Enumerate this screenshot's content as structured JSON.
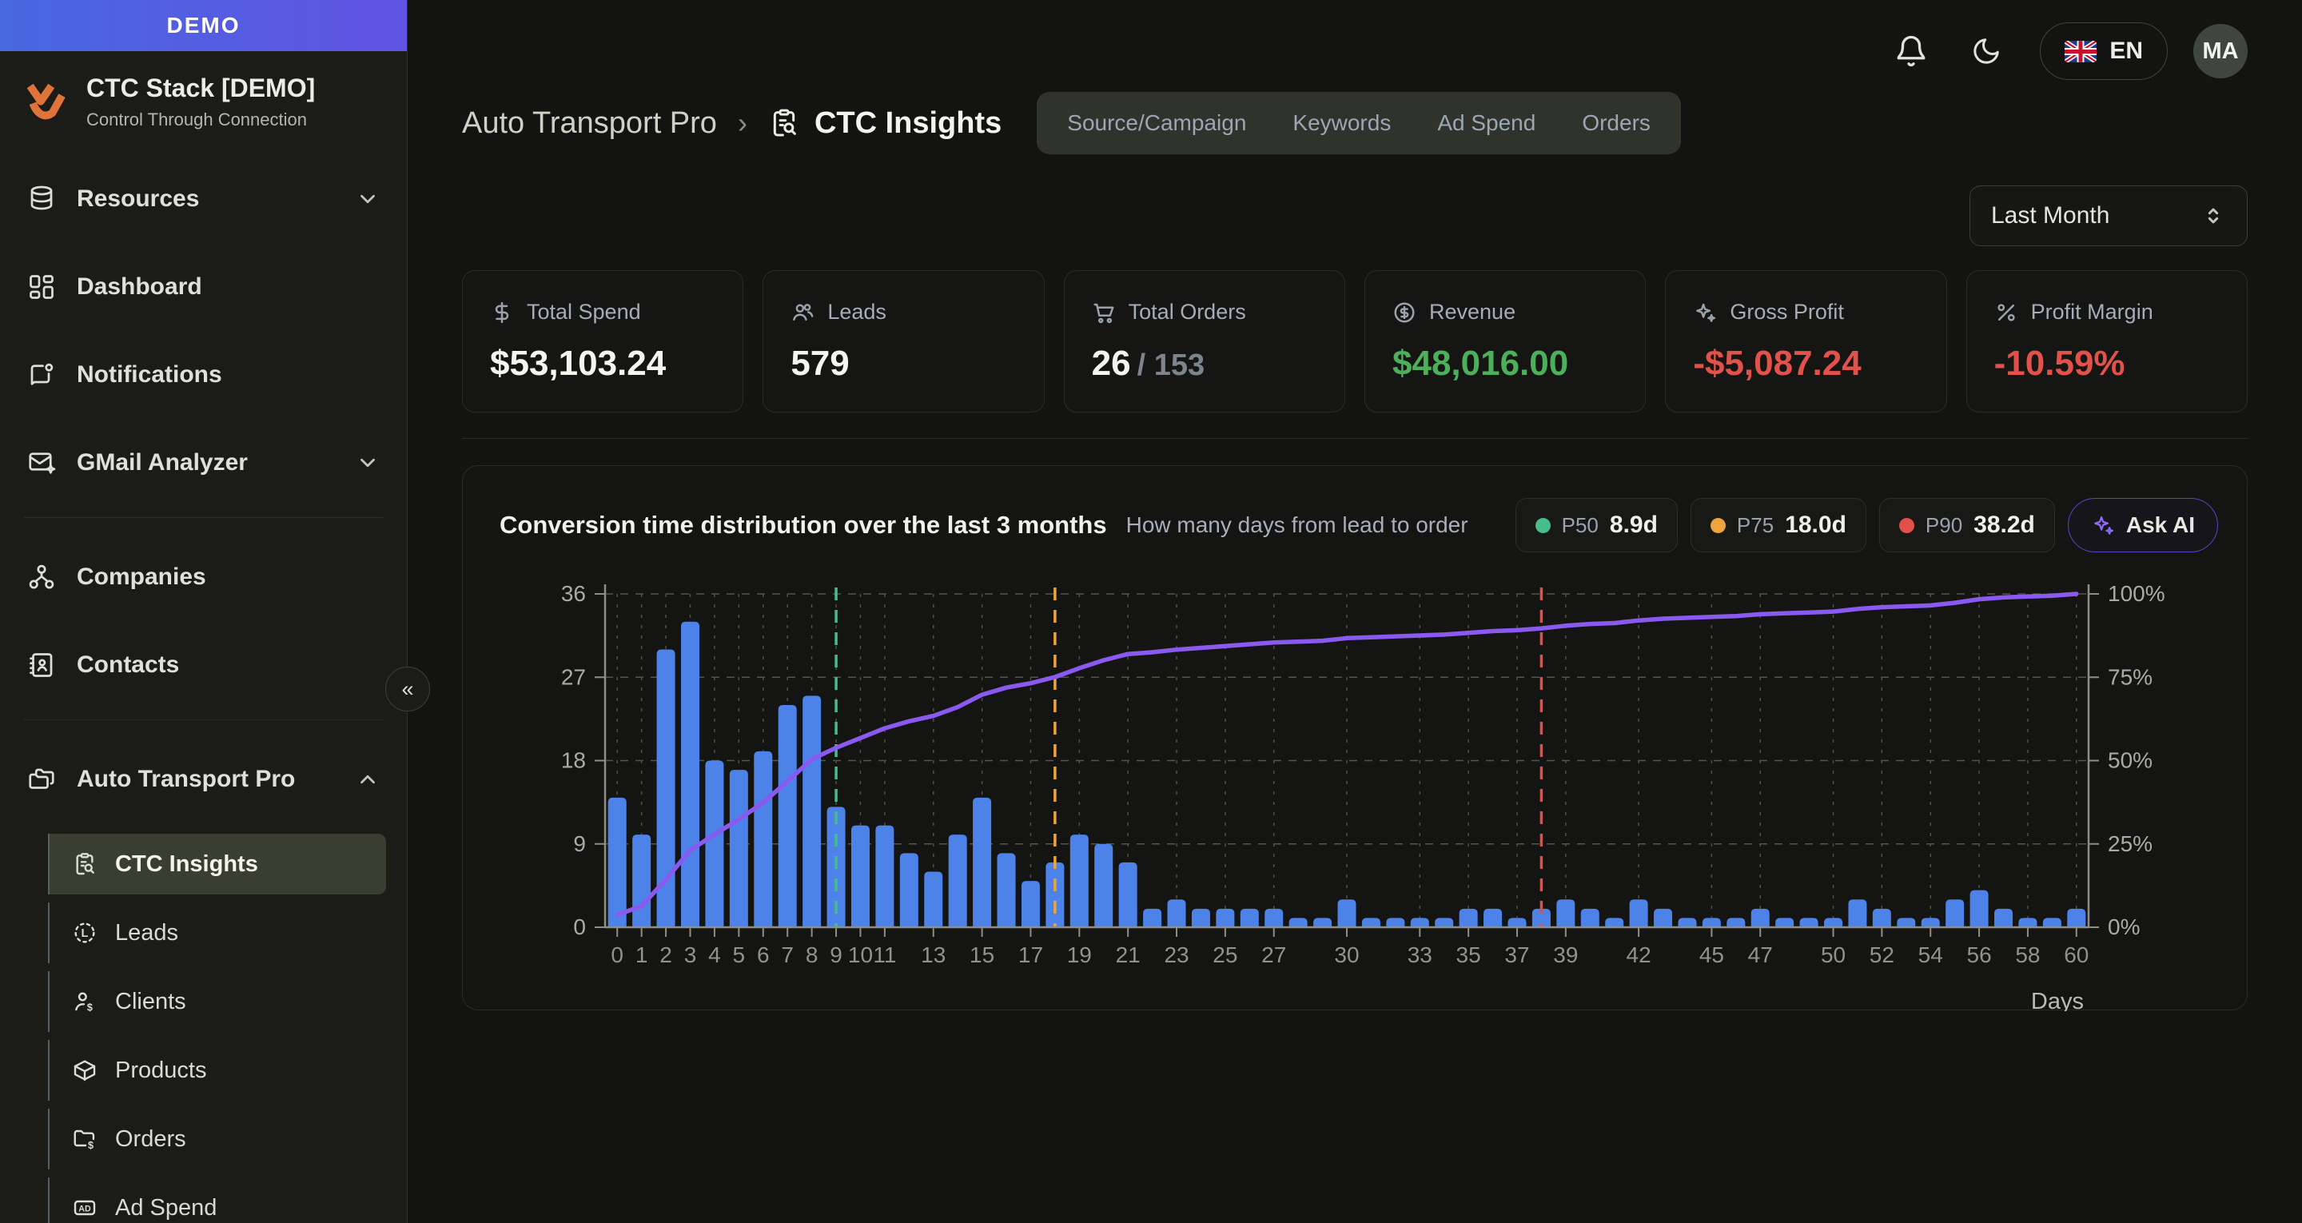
{
  "icons": {
    "logo-mark-icon": "orange double-chevron brand mark",
    "bell-icon": "notification bell outline",
    "moon-icon": "crescent dark-mode toggle",
    "uk-flag-icon": "union jack flag",
    "database-icon": "cylinder database",
    "dashboard-icon": "layout grid tiles",
    "notifications-icon": "message square with dot",
    "mail-sparkle-icon": "envelope with sparkle",
    "org-network-icon": "three connected nodes",
    "contacts-book-icon": "address book",
    "folders-icon": "stacked folders",
    "clipboard-search-icon": "clipboard with magnifier",
    "leads-icon": "dashed circle with L",
    "client-dollar-icon": "person with dollar",
    "package-icon": "3d box package",
    "folder-dollar-icon": "folder with dollar",
    "ad-badge-icon": "rounded rectangle with AD",
    "chevron-down-icon": "v",
    "chevron-up-icon": "^",
    "updown-icon": "select up-down chevrons",
    "dollar-icon": "$",
    "users-icon": "two people",
    "cart-icon": "shopping cart",
    "circle-dollar-icon": "$ in circle",
    "sparkles-icon": "four-point stars",
    "percent-icon": "%"
  },
  "sidebar": {
    "banner": "DEMO",
    "brand": {
      "title": "CTC Stack [DEMO]",
      "subtitle": "Control Through Connection"
    },
    "items": [
      {
        "label": "Resources",
        "icon": "database-icon",
        "expandable": true
      },
      {
        "label": "Dashboard",
        "icon": "dashboard-icon"
      },
      {
        "label": "Notifications",
        "icon": "notifications-icon"
      },
      {
        "label": "GMail Analyzer",
        "icon": "mail-sparkle-icon",
        "expandable": true
      },
      {
        "label": "Companies",
        "icon": "org-network-icon"
      },
      {
        "label": "Contacts",
        "icon": "contacts-book-icon"
      },
      {
        "label": "Auto Transport Pro",
        "icon": "folders-icon",
        "expanded": true
      }
    ],
    "subitems": [
      {
        "label": "CTC Insights",
        "icon": "clipboard-search-icon",
        "active": true
      },
      {
        "label": "Leads",
        "icon": "leads-icon"
      },
      {
        "label": "Clients",
        "icon": "client-dollar-icon"
      },
      {
        "label": "Products",
        "icon": "package-icon"
      },
      {
        "label": "Orders",
        "icon": "folder-dollar-icon"
      },
      {
        "label": "Ad Spend",
        "icon": "ad-badge-icon"
      }
    ],
    "collapse_glyph": "«"
  },
  "topbar": {
    "language": "EN",
    "avatar_initials": "MA"
  },
  "breadcrumb": {
    "parent": "Auto Transport Pro",
    "separator": "›",
    "current": "CTC Insights"
  },
  "tabs": [
    {
      "label": "Source/Campaign"
    },
    {
      "label": "Keywords"
    },
    {
      "label": "Ad Spend"
    },
    {
      "label": "Orders"
    }
  ],
  "filters": {
    "period": "Last Month"
  },
  "kpis": [
    {
      "label": "Total Spend",
      "value": "$53,103.24",
      "color": "#f5f5ef"
    },
    {
      "label": "Leads",
      "value": "579",
      "color": "#f5f5ef"
    },
    {
      "label": "Total Orders",
      "value": "26",
      "value_secondary": "/ 153",
      "color": "#f5f5ef"
    },
    {
      "label": "Revenue",
      "value": "$48,016.00",
      "color": "#4cb05a"
    },
    {
      "label": "Gross Profit",
      "value": "-$5,087.24",
      "color": "#e2524a"
    },
    {
      "label": "Profit Margin",
      "value": "-10.59%",
      "color": "#e2524a"
    }
  ],
  "chart_card": {
    "title": "Conversion time distribution over the last 3 months",
    "subtitle": "How many days from lead to order",
    "percentile_chips": [
      {
        "label": "P50",
        "value": "8.9d",
        "color": "#45bd8d"
      },
      {
        "label": "P75",
        "value": "18.0d",
        "color": "#eca43e"
      },
      {
        "label": "P90",
        "value": "38.2d",
        "color": "#e25149"
      }
    ],
    "ask_ai_label": "Ask AI"
  },
  "chart_data": {
    "type": "bar",
    "title": "Conversion time distribution over the last 3 months",
    "xlabel": "Days",
    "x_range": [
      0,
      60
    ],
    "bar_values": [
      14,
      10,
      30,
      33,
      18,
      17,
      19,
      24,
      25,
      13,
      11,
      11,
      8,
      6,
      10,
      14,
      8,
      5,
      7,
      10,
      9,
      7,
      2,
      3,
      2,
      2,
      2,
      2,
      1,
      1,
      3,
      1,
      1,
      1,
      1,
      2,
      2,
      1,
      2,
      3,
      2,
      1,
      3,
      2,
      1,
      1,
      1,
      2,
      1,
      1,
      1,
      3,
      2,
      1,
      1,
      3,
      4,
      2,
      1,
      1,
      2
    ],
    "x_tick_labels": [
      0,
      1,
      2,
      3,
      4,
      5,
      6,
      7,
      8,
      9,
      10,
      11,
      13,
      15,
      17,
      19,
      21,
      23,
      25,
      27,
      30,
      33,
      35,
      37,
      39,
      42,
      45,
      47,
      50,
      52,
      54,
      56,
      58,
      60
    ],
    "ylim_left": [
      0,
      36
    ],
    "yticks_left": [
      0,
      9,
      18,
      27,
      36
    ],
    "yticks_right": [
      "0%",
      "25%",
      "50%",
      "75%",
      "100%"
    ],
    "bar_color": "#4d82e8",
    "line": {
      "name": "Cumulative %",
      "color": "#8a5af0",
      "derivation": "cumulative sum of bar_values as percent of total, right axis 0-100%"
    },
    "percentile_lines": [
      {
        "name": "P50",
        "day": 9,
        "color": "#45bd8d"
      },
      {
        "name": "P75",
        "day": 18,
        "color": "#eca43e"
      },
      {
        "name": "P90",
        "day": 38,
        "color": "#e25149"
      }
    ],
    "grid": true,
    "legend_position": "top-right"
  }
}
